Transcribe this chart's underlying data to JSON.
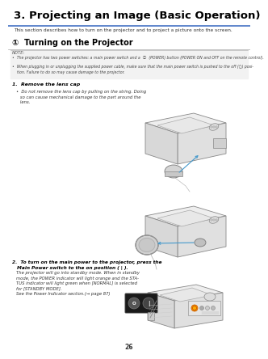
{
  "page_number": "26",
  "bg_color": "#ffffff",
  "title": "3. Projecting an Image (Basic Operation)",
  "title_fontsize": 9.5,
  "subtitle": "This section describes how to turn on the projector and to project a picture onto the screen.",
  "subtitle_fontsize": 4.2,
  "section_header": "①  Turning on the Projector",
  "section_header_fontsize": 7.0,
  "note_label": "NOTE:",
  "note_line1": "•  The projector has two power switches: a main power switch and a  ⓘ  (POWER) button (POWER ON and OFF on the remote control).",
  "note_line2": "•  When plugging in or unplugging the supplied power cable, make sure that the main power switch is pushed to the off (○) posi-\n    tion. Failure to do so may cause damage to the projector.",
  "step1_label": "1.  Remove the lens cap",
  "step1_bullet": "•  Do not remove the lens cap by pulling on the string. Doing\n   so can cause mechanical damage to the part around the\n   lens.",
  "step2_label": "2.  To turn on the main power to the projector, press the\n   Main Power switch to the on position ( | ).",
  "step2_body": "The projector will go into standby mode. When in standby\nmode, the POWER indicator will light orange and the STA-\nTUS indicator will light green when [NORMAL] is selected\nfor [STANDBY MODE].\nSee the Power Indicator section.(→ page 87)",
  "title_underline_color": "#4472c4",
  "section_underline_color": "#000000",
  "text_color": "#000000",
  "note_text_color": "#444444",
  "italic_text_color": "#333333",
  "arrow_color": "#4499cc"
}
